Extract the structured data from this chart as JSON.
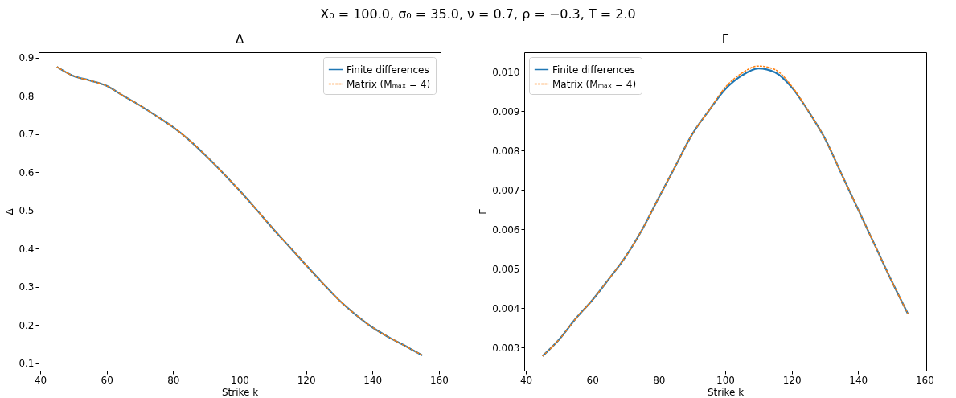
{
  "chart_data": [
    {
      "type": "line",
      "title": "Δ",
      "xlabel": "Strike k",
      "ylabel": "Δ",
      "annotations": [
        "X₀ = 100.0, σ₀ = 35.0, ν = 0.7, ρ = −0.3, T = 2.0"
      ],
      "x": [
        45,
        50,
        55,
        60,
        65,
        70,
        75,
        80,
        85,
        90,
        95,
        100,
        105,
        110,
        115,
        120,
        125,
        130,
        135,
        140,
        145,
        150,
        155
      ],
      "xlim": [
        39.5,
        160.5
      ],
      "xticks": [
        40,
        60,
        80,
        100,
        120,
        140,
        160
      ],
      "ylim": [
        0.081,
        0.914
      ],
      "yticks": [
        0.1,
        0.2,
        0.3,
        0.4,
        0.5,
        0.6,
        0.7,
        0.8,
        0.9
      ],
      "legend": "top right",
      "series": [
        {
          "name": "Finite differences",
          "color": "#1f77b4",
          "line_style": "solid",
          "values": [
            0.876,
            0.852,
            0.84,
            0.826,
            0.8,
            0.775,
            0.747,
            0.718,
            0.683,
            0.642,
            0.598,
            0.552,
            0.503,
            0.453,
            0.405,
            0.357,
            0.31,
            0.265,
            0.227,
            0.194,
            0.168,
            0.145,
            0.121
          ]
        },
        {
          "name": "Matrix (Mₘₐₓ = 4)",
          "color": "#ff7f0e",
          "line_style": "dashed",
          "values": [
            0.876,
            0.852,
            0.84,
            0.826,
            0.8,
            0.775,
            0.747,
            0.718,
            0.683,
            0.642,
            0.598,
            0.552,
            0.503,
            0.453,
            0.405,
            0.357,
            0.31,
            0.265,
            0.227,
            0.194,
            0.168,
            0.145,
            0.121
          ]
        }
      ]
    },
    {
      "type": "line",
      "title": "Γ",
      "xlabel": "Strike k",
      "ylabel": "Γ",
      "x": [
        45,
        50,
        55,
        60,
        65,
        70,
        75,
        80,
        85,
        90,
        95,
        100,
        105,
        110,
        115,
        120,
        125,
        130,
        135,
        140,
        145,
        150,
        155
      ],
      "xlim": [
        39.5,
        160.5
      ],
      "xticks": [
        40,
        60,
        80,
        100,
        120,
        140,
        160
      ],
      "ylim": [
        0.00241,
        0.01049
      ],
      "yticks": [
        0.003,
        0.004,
        0.005,
        0.006,
        0.007,
        0.008,
        0.009,
        {
          "value": 0.01,
          "label": "0.010"
        }
      ],
      "legend": "top left",
      "series": [
        {
          "name": "Finite differences",
          "color": "#1f77b4",
          "line_style": "solid",
          "values": [
            0.00278,
            0.0032,
            0.00373,
            0.0042,
            0.00474,
            0.0053,
            0.00599,
            0.0068,
            0.0076,
            0.0084,
            0.009,
            0.00955,
            0.0099,
            0.01008,
            0.00998,
            0.0096,
            0.009,
            0.0083,
            0.0074,
            0.0065,
            0.0056,
            0.0047,
            0.00385
          ]
        },
        {
          "name": "Matrix (Mₘₐₓ = 4)",
          "color": "#ff7f0e",
          "line_style": "dashed",
          "values": [
            0.00278,
            0.0032,
            0.00373,
            0.0042,
            0.00474,
            0.0053,
            0.00599,
            0.0068,
            0.0076,
            0.0084,
            0.009,
            0.0096,
            0.00996,
            0.01014,
            0.01005,
            0.00963,
            0.009,
            0.0083,
            0.0074,
            0.0065,
            0.0056,
            0.0047,
            0.00385
          ]
        }
      ]
    }
  ]
}
